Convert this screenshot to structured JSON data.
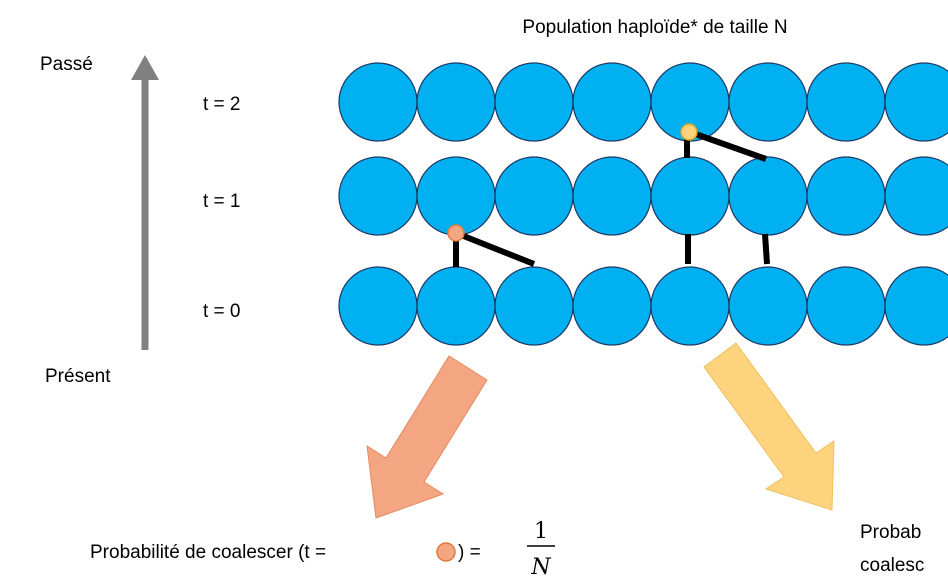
{
  "title": "Population haploïde* de taille N",
  "past": "Passé",
  "present": "Présent",
  "time_labels": [
    "t = 2",
    "t = 1",
    "t = 0"
  ],
  "probability_left": {
    "prefix": "Probabilité de coalescer (t =",
    "suffix": ") =",
    "numerator": "1",
    "denominator": "N"
  },
  "probability_right": [
    "Probab",
    "coalesc"
  ]
}
